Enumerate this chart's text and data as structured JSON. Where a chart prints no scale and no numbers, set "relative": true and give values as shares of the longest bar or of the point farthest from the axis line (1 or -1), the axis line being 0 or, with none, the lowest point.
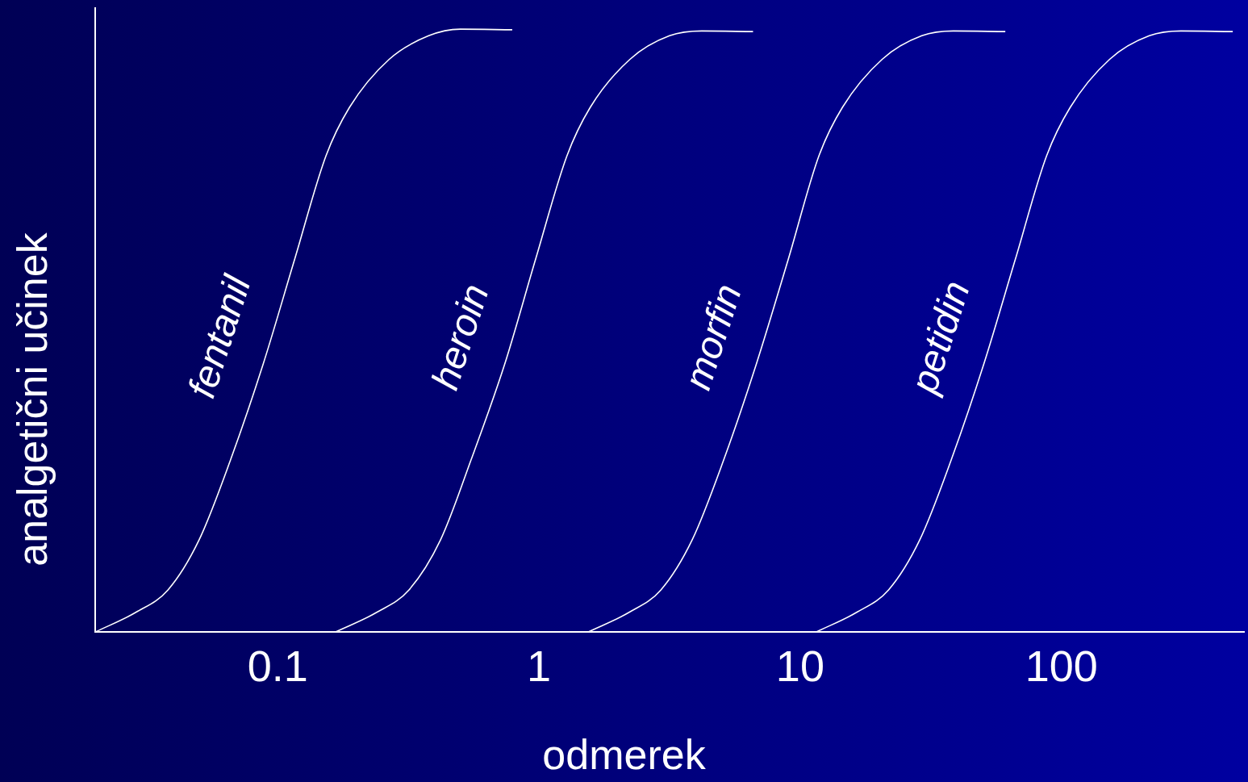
{
  "chart_data": {
    "type": "line",
    "xlabel": "odmerek",
    "ylabel": "analgetični učinek",
    "log": "x",
    "relative": true,
    "xlim": [
      0.02,
      500
    ],
    "xticks": [
      0.1,
      1,
      10,
      100
    ],
    "grid": false,
    "legend": false,
    "marker": "none",
    "line_style": "solid",
    "series": [
      {
        "name": "fentanil",
        "color": "#ffffff",
        "x": [
          0.02,
          0.0287,
          0.038,
          0.05,
          0.066,
          0.088,
          0.116,
          0.153,
          0.188,
          0.267,
          0.378,
          0.5,
          0.79
        ],
        "values": [
          0,
          0.033,
          0.07,
          0.153,
          0.286,
          0.445,
          0.618,
          0.79,
          0.87,
          0.95,
          0.989,
          1,
          0.999
        ]
      },
      {
        "name": "heroin",
        "color": "#ffffff",
        "x": [
          0.166,
          0.24,
          0.318,
          0.42,
          0.55,
          0.74,
          0.97,
          1.28,
          1.57,
          2.23,
          3.16,
          4.2,
          6.6
        ],
        "values": [
          0,
          0.033,
          0.07,
          0.153,
          0.286,
          0.445,
          0.618,
          0.79,
          0.87,
          0.95,
          0.989,
          0.997,
          0.996
        ]
      },
      {
        "name": "morfin",
        "color": "#ffffff",
        "x": [
          1.54,
          2.22,
          2.93,
          3.86,
          5.1,
          6.8,
          9,
          11.8,
          14.5,
          20.6,
          29.2,
          38.6,
          61
        ],
        "values": [
          0,
          0.033,
          0.07,
          0.153,
          0.286,
          0.445,
          0.618,
          0.79,
          0.87,
          0.95,
          0.989,
          0.997,
          0.996
        ]
      },
      {
        "name": "petidin",
        "color": "#ffffff",
        "x": [
          11.5,
          16.5,
          21.8,
          28.7,
          37.9,
          50.5,
          66.6,
          87.8,
          108,
          153,
          217,
          287,
          453
        ],
        "values": [
          0,
          0.033,
          0.07,
          0.153,
          0.286,
          0.445,
          0.618,
          0.79,
          0.87,
          0.95,
          0.989,
          0.997,
          0.996
        ]
      }
    ]
  }
}
